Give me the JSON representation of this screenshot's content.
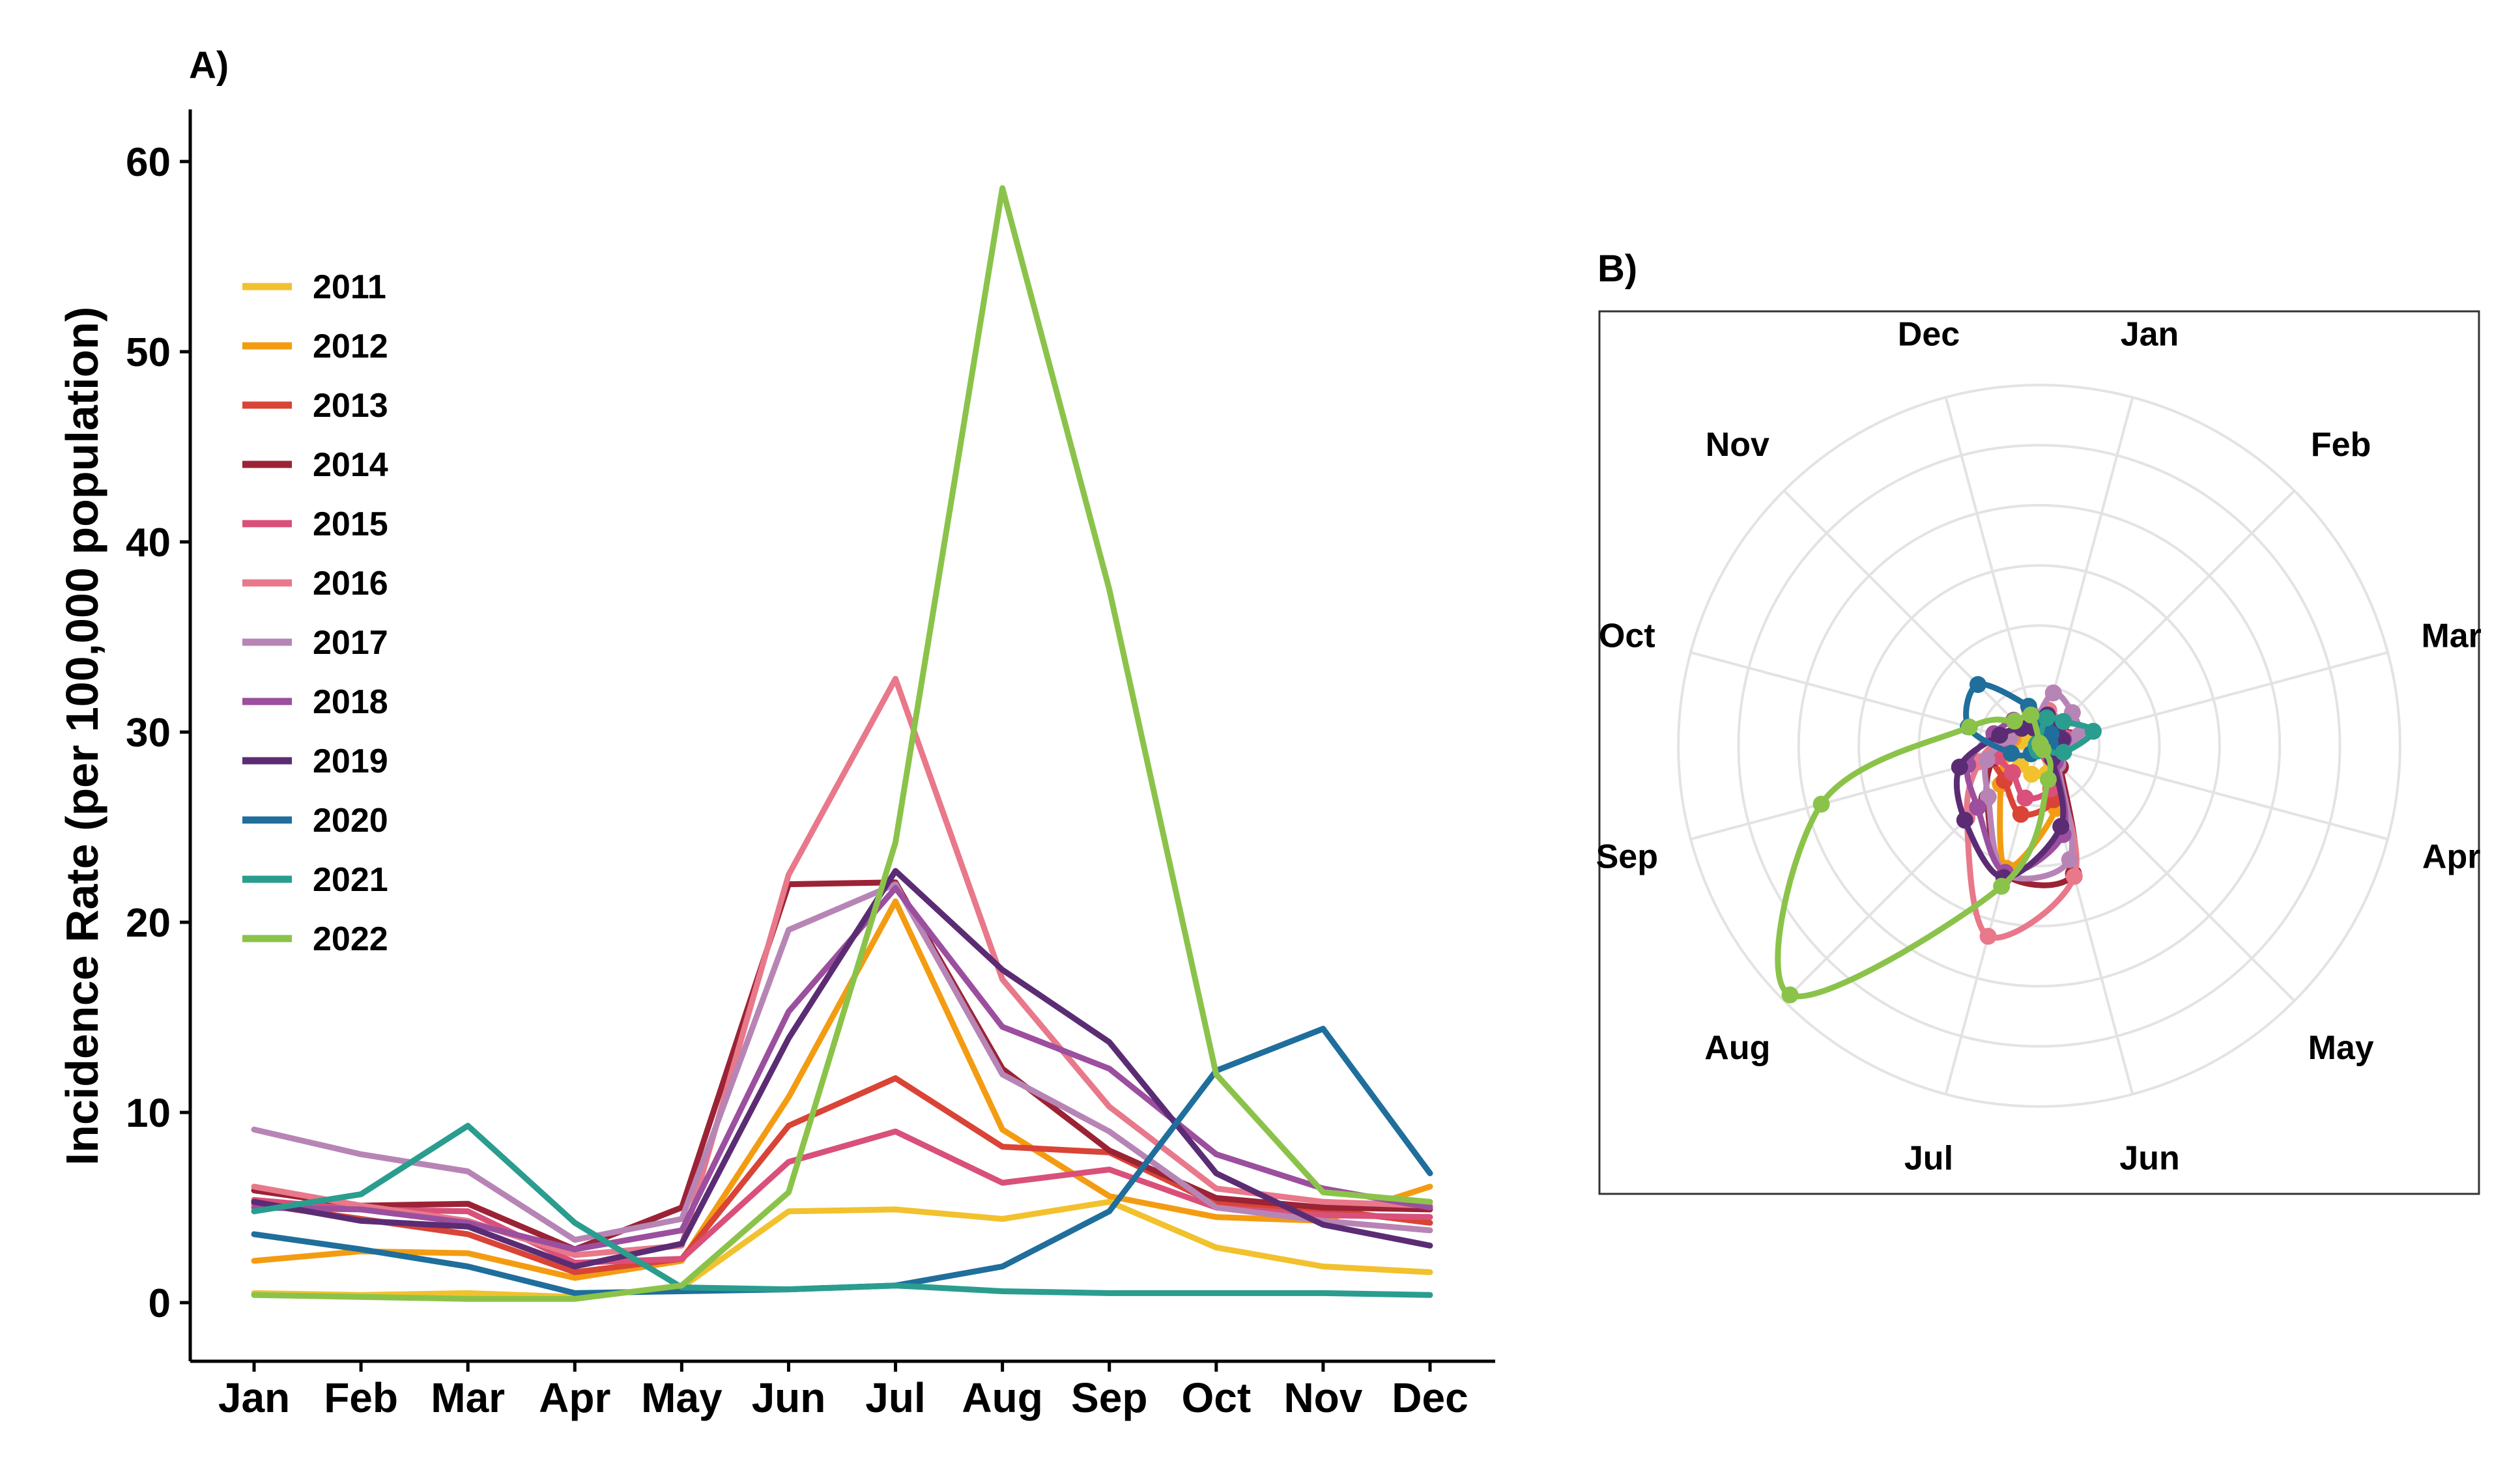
{
  "panels": {
    "a_label": "A)",
    "b_label": "B)"
  },
  "chart_data": [
    {
      "type": "line",
      "panel": "A",
      "title": "",
      "xlabel": "",
      "ylabel": "Incidence Rate (per 100,000 population)",
      "ylim": [
        0,
        63
      ],
      "yticks": [
        0,
        10,
        20,
        30,
        40,
        50,
        60
      ],
      "categories": [
        "Jan",
        "Feb",
        "Mar",
        "Apr",
        "May",
        "Jun",
        "Jul",
        "Aug",
        "Sep",
        "Oct",
        "Nov",
        "Dec"
      ],
      "legend_position": "top-left",
      "series": [
        {
          "name": "2011",
          "color": "#F2C12E",
          "values": [
            0.5,
            0.4,
            0.5,
            0.3,
            0.8,
            4.8,
            4.9,
            4.4,
            5.3,
            2.9,
            1.9,
            1.6
          ]
        },
        {
          "name": "2012",
          "color": "#F39C12",
          "values": [
            2.2,
            2.7,
            2.6,
            1.3,
            2.2,
            10.8,
            21.1,
            9.1,
            5.6,
            4.5,
            4.3,
            6.1
          ]
        },
        {
          "name": "2013",
          "color": "#D94436",
          "values": [
            5.2,
            4.4,
            3.6,
            1.6,
            2.3,
            9.3,
            11.8,
            8.2,
            7.9,
            5.2,
            4.9,
            4.2
          ]
        },
        {
          "name": "2014",
          "color": "#9B2335",
          "values": [
            5.9,
            5.1,
            5.2,
            2.8,
            5.0,
            22.0,
            22.1,
            12.3,
            8.0,
            5.5,
            5.0,
            4.9
          ]
        },
        {
          "name": "2015",
          "color": "#D9507A",
          "values": [
            5.4,
            4.9,
            4.8,
            2.1,
            2.3,
            7.4,
            9.0,
            6.3,
            7.0,
            5.0,
            4.6,
            4.5
          ]
        },
        {
          "name": "2016",
          "color": "#E8788A",
          "values": [
            6.1,
            5.1,
            4.3,
            2.5,
            3.0,
            22.5,
            32.8,
            17.0,
            10.3,
            6.0,
            5.3,
            5.1
          ]
        },
        {
          "name": "2017",
          "color": "#B785B5",
          "values": [
            9.1,
            7.8,
            6.9,
            3.3,
            4.4,
            19.6,
            22.0,
            12.0,
            9.0,
            5.0,
            4.3,
            3.8
          ]
        },
        {
          "name": "2018",
          "color": "#9B4F9E",
          "values": [
            5.0,
            4.9,
            4.2,
            2.8,
            3.8,
            15.3,
            21.8,
            14.5,
            12.3,
            7.8,
            6.0,
            5.0
          ]
        },
        {
          "name": "2019",
          "color": "#5B2C74",
          "values": [
            5.3,
            4.3,
            4.0,
            1.9,
            3.1,
            13.9,
            22.7,
            17.5,
            13.7,
            6.8,
            4.1,
            3.0
          ]
        },
        {
          "name": "2020",
          "color": "#1F6E9C",
          "values": [
            3.6,
            2.8,
            1.9,
            0.5,
            0.6,
            0.7,
            0.9,
            1.9,
            4.8,
            12.2,
            14.4,
            6.8
          ]
        },
        {
          "name": "2021",
          "color": "#2A9D8F",
          "values": [
            4.8,
            5.7,
            9.3,
            4.2,
            0.8,
            0.7,
            0.9,
            0.6,
            0.5,
            0.5,
            0.5,
            0.4
          ]
        },
        {
          "name": "2022",
          "color": "#8BC34A",
          "values": [
            0.4,
            0.3,
            0.2,
            0.2,
            0.9,
            5.8,
            24.2,
            58.6,
            37.5,
            12.0,
            5.8,
            5.3
          ]
        }
      ]
    },
    {
      "type": "polar-line",
      "panel": "B",
      "angular_labels": [
        "Jan",
        "Feb",
        "Mar",
        "Apr",
        "May",
        "Jun",
        "Jul",
        "Aug",
        "Sep",
        "Oct",
        "Nov",
        "Dec"
      ],
      "radial_range": [
        0,
        65
      ],
      "radial_grid": [
        10,
        20,
        30,
        40,
        50,
        60
      ],
      "radial_axis_labels_shown": false,
      "note": "Same monthly series plotted on a clockwise polar axis starting at Jan (top-right)."
    }
  ]
}
